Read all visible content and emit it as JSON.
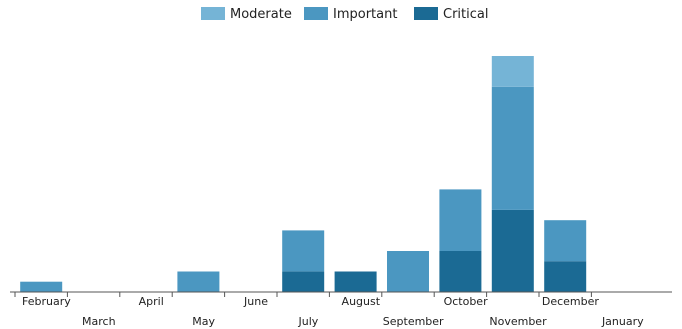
{
  "chart_data": {
    "type": "bar",
    "stacked": true,
    "categories": [
      "February",
      "March",
      "April",
      "May",
      "June",
      "July",
      "August",
      "September",
      "October",
      "November",
      "December",
      "January"
    ],
    "series": [
      {
        "name": "Critical",
        "color": "#1b6a94",
        "values": [
          0,
          0,
          0,
          0,
          0,
          1,
          1,
          0,
          2,
          4,
          1.5,
          0
        ]
      },
      {
        "name": "Important",
        "color": "#4b97c1",
        "values": [
          0.5,
          0,
          0,
          1,
          0,
          2,
          0,
          2,
          3,
          6,
          2,
          0
        ]
      },
      {
        "name": "Moderate",
        "color": "#75b4d6",
        "values": [
          0,
          0,
          0,
          0,
          0,
          0,
          0,
          0,
          0,
          1.5,
          0,
          0
        ]
      }
    ],
    "legend_order": [
      "Moderate",
      "Important",
      "Critical"
    ],
    "legend_position": "top-center",
    "ylim": [
      0,
      11.5
    ],
    "grid": false,
    "title": "",
    "xlabel": "",
    "ylabel": ""
  }
}
